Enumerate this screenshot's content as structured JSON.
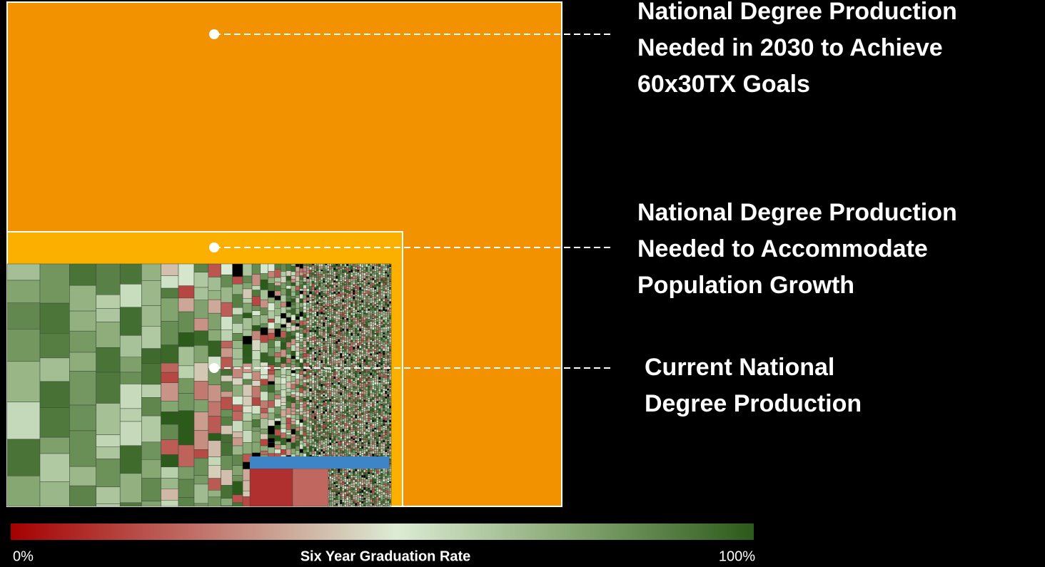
{
  "callouts": [
    {
      "lines": [
        "National Degree Production",
        "Needed in 2030 to Achieve",
        "60x30TX Goals"
      ]
    },
    {
      "lines": [
        "National Degree Production",
        "Needed to Accommodate",
        "Population Growth"
      ]
    },
    {
      "lines": [
        "Current National",
        "Degree Production"
      ]
    }
  ],
  "legend": {
    "title": "Six Year Graduation Rate",
    "min_label": "0%",
    "max_label": "100%"
  }
}
